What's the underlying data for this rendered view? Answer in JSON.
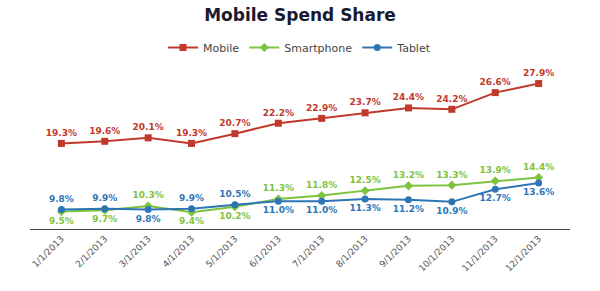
{
  "chart_data": {
    "type": "line",
    "title": "Mobile Spend Share",
    "categories": [
      "1/1/2013",
      "2/1/2013",
      "3/1/2013",
      "4/1/2013",
      "5/1/2013",
      "6/1/2013",
      "7/1/2013",
      "8/1/2013",
      "9/1/2013",
      "10/1/2013",
      "11/1/2013",
      "12/1/2013"
    ],
    "series": [
      {
        "name": "Mobile",
        "color": "#c0392b",
        "marker": "square",
        "line_style": "solid",
        "values": [
          19.3,
          19.6,
          20.1,
          19.3,
          20.7,
          22.2,
          22.9,
          23.7,
          24.4,
          24.2,
          26.6,
          27.9
        ],
        "value_labels": [
          "19.3%",
          "19.6%",
          "20.1%",
          "19.3%",
          "20.7%",
          "22.2%",
          "22.9%",
          "23.7%",
          "24.4%",
          "24.2%",
          "26.6%",
          "27.9%"
        ]
      },
      {
        "name": "Smartphone",
        "color": "#7dc340",
        "marker": "diamond",
        "line_style": "solid",
        "values": [
          9.5,
          9.7,
          10.3,
          9.4,
          10.2,
          11.3,
          11.8,
          12.5,
          13.2,
          13.3,
          13.9,
          14.4
        ],
        "value_labels": [
          "9.5%",
          "9.7%",
          "10.3%",
          "9.4%",
          "10.2%",
          "11.3%",
          "11.8%",
          "12.5%",
          "13.2%",
          "13.3%",
          "13.9%",
          "14.4%"
        ]
      },
      {
        "name": "Tablet",
        "color": "#2e75b6",
        "marker": "circle",
        "line_style": "solid",
        "values": [
          9.8,
          9.9,
          9.8,
          9.9,
          10.5,
          11.0,
          11.0,
          11.3,
          11.2,
          10.9,
          12.7,
          13.6
        ],
        "value_labels": [
          "9.8%",
          "9.9%",
          "9.8%",
          "9.9%",
          "10.5%",
          "11.0%",
          "11.0%",
          "11.3%",
          "11.2%",
          "10.9%",
          "12.7%",
          "13.6%"
        ]
      }
    ],
    "ylim": [
      7,
      31
    ],
    "tick_labels": "x",
    "grid": false,
    "legend": "top",
    "data_labels": true
  }
}
